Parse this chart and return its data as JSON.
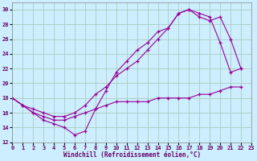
{
  "xlabel": "Windchill (Refroidissement éolien,°C)",
  "background_color": "#cceeff",
  "grid_color": "#aaccbb",
  "line_color": "#990099",
  "xlim": [
    0,
    23
  ],
  "ylim": [
    12,
    31
  ],
  "yticks": [
    12,
    14,
    16,
    18,
    20,
    22,
    24,
    26,
    28,
    30
  ],
  "xticks": [
    0,
    1,
    2,
    3,
    4,
    5,
    6,
    7,
    8,
    9,
    10,
    11,
    12,
    13,
    14,
    15,
    16,
    17,
    18,
    19,
    20,
    21,
    22,
    23
  ],
  "curves": [
    {
      "x": [
        0,
        1,
        2,
        3,
        4,
        5,
        6,
        7,
        8,
        9,
        10,
        11,
        12,
        13,
        14,
        15,
        16,
        17,
        18,
        19,
        20,
        21,
        22
      ],
      "y": [
        18,
        17,
        16,
        15,
        14.5,
        14,
        13,
        13.5,
        16.5,
        19,
        21.5,
        23,
        24.5,
        25.5,
        27,
        27.5,
        29.5,
        30,
        29.5,
        29,
        25.5,
        21.5,
        22
      ]
    },
    {
      "x": [
        0,
        1,
        2,
        3,
        4,
        5,
        6,
        7,
        8,
        9,
        10,
        11,
        12,
        13,
        14,
        15,
        16,
        17,
        18,
        19,
        20,
        21,
        22
      ],
      "y": [
        18,
        17,
        16.5,
        16,
        15.5,
        15.5,
        16,
        17,
        18.5,
        19.5,
        21,
        22,
        23,
        24.5,
        26,
        27.5,
        29.5,
        30,
        29,
        28.5,
        29,
        26,
        22
      ]
    },
    {
      "x": [
        0,
        1,
        2,
        3,
        4,
        5,
        6,
        7,
        8,
        9,
        10,
        11,
        12,
        13,
        14,
        15,
        16,
        17,
        18,
        19,
        20,
        21,
        22
      ],
      "y": [
        18,
        17,
        16,
        15.5,
        15,
        15,
        15.5,
        16,
        16.5,
        17,
        17.5,
        17.5,
        17.5,
        17.5,
        18,
        18,
        18,
        18,
        18.5,
        18.5,
        19,
        19.5,
        19.5
      ]
    }
  ]
}
